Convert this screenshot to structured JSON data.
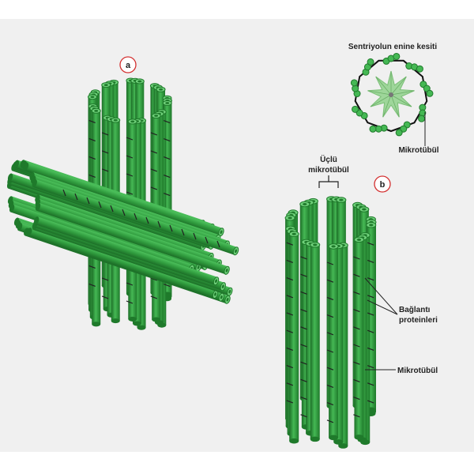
{
  "labels": {
    "a": "a",
    "b": "b",
    "cross_section_title": "Sentriyolun enine kesiti",
    "cross_section_microtubule": "Mikrotübül",
    "triplet_line1": "Üçlü",
    "triplet_line2": "mikrotübül",
    "linker_line1": "Bağlantı",
    "linker_line2": "proteinleri",
    "microtubule": "Mikrotübül"
  },
  "colors": {
    "background_panel": "#f0f0f0",
    "tube_dark": "#1f7a2b",
    "tube_mid": "#35a845",
    "tube_light": "#6fd07a",
    "linker": "#222222",
    "badge_ring": "#d32f2f",
    "star_fill": "#9ed69a"
  }
}
